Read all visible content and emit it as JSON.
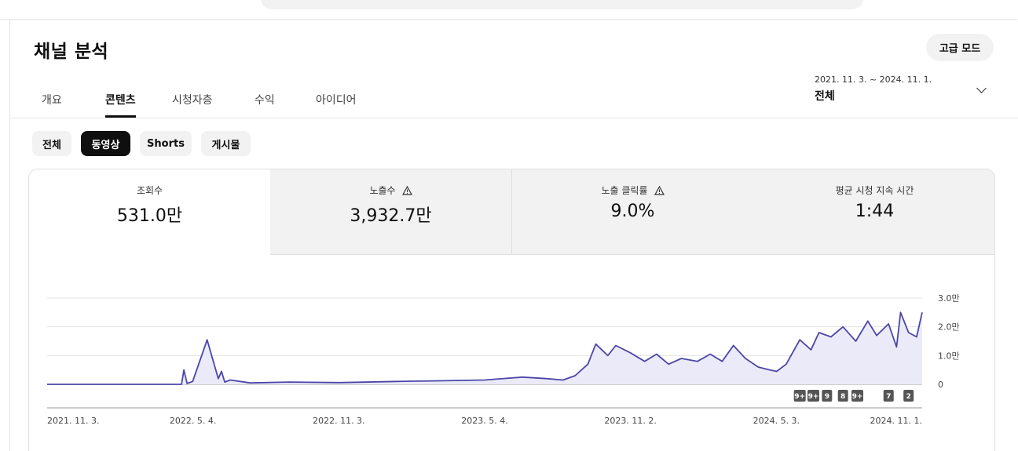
{
  "page": {
    "title": "채널 분석",
    "advanced_mode": "고급 모드"
  },
  "tabs": [
    {
      "label": "개요"
    },
    {
      "label": "콘텐츠"
    },
    {
      "label": "시청자층"
    },
    {
      "label": "수익"
    },
    {
      "label": "아이디어"
    }
  ],
  "active_tab": "콘텐츠",
  "date_range": {
    "range": "2021. 11. 3. ~ 2024. 11. 1.",
    "label": "전체"
  },
  "chips": [
    {
      "label": "전체"
    },
    {
      "label": "동영상"
    },
    {
      "label": "Shorts"
    },
    {
      "label": "게시물"
    }
  ],
  "active_chip": "동영상",
  "metrics": [
    {
      "label": "조회수",
      "value": "531.0만",
      "warning": false
    },
    {
      "label": "노출수",
      "value": "3,932.7만",
      "warning": true
    },
    {
      "label": "노출 클릭률",
      "value": "9.0%",
      "warning": true
    },
    {
      "label": "평균 시청 지속 시간",
      "value": "1:44",
      "warning": false
    }
  ],
  "colors": {
    "line": "#4c46a8",
    "area": "#ebeaf9",
    "badge": "#555555"
  },
  "chart_data": {
    "type": "area",
    "x_start": "2021-11-03",
    "x_end": "2024-11-01",
    "x_tick_labels": [
      "2021. 11. 3.",
      "2022. 5. 4.",
      "2022. 11. 3.",
      "2023. 5. 4.",
      "2023. 11. 2.",
      "2024. 5. 3.",
      "2024. 11. 1."
    ],
    "y_tick_labels": [
      "0",
      "1.0만",
      "2.0만",
      "3.0만"
    ],
    "ylim": [
      0,
      30000
    ],
    "grid": true,
    "y_axis_side": "right",
    "x": [
      "2021-11-03",
      "2022-04-20",
      "2022-04-23",
      "2022-04-27",
      "2022-05-04",
      "2022-05-22",
      "2022-06-05",
      "2022-06-09",
      "2022-06-13",
      "2022-06-20",
      "2022-07-15",
      "2022-09-01",
      "2022-11-03",
      "2023-01-15",
      "2023-03-01",
      "2023-05-04",
      "2023-06-20",
      "2023-07-20",
      "2023-08-10",
      "2023-08-25",
      "2023-09-10",
      "2023-09-20",
      "2023-10-05",
      "2023-10-15",
      "2023-11-02",
      "2023-11-20",
      "2023-12-05",
      "2023-12-20",
      "2024-01-05",
      "2024-01-25",
      "2024-02-10",
      "2024-02-25",
      "2024-03-10",
      "2024-03-25",
      "2024-04-10",
      "2024-04-25",
      "2024-05-03",
      "2024-05-15",
      "2024-06-01",
      "2024-06-15",
      "2024-06-25",
      "2024-07-10",
      "2024-07-25",
      "2024-08-10",
      "2024-08-25",
      "2024-09-05",
      "2024-09-20",
      "2024-09-30",
      "2024-10-05",
      "2024-10-15",
      "2024-10-25",
      "2024-11-01"
    ],
    "series": [
      {
        "values": [
          0,
          0,
          5000,
          300,
          1000,
          15500,
          2000,
          4500,
          800,
          1500,
          500,
          800,
          600,
          1000,
          1200,
          1500,
          2500,
          2000,
          1500,
          3000,
          7000,
          14000,
          10000,
          13500,
          11000,
          8000,
          10500,
          7000,
          9000,
          8000,
          10500,
          8000,
          13500,
          9000,
          6000,
          5000,
          4500,
          7000,
          15500,
          12000,
          18000,
          16500,
          20000,
          15000,
          22000,
          17000,
          21000,
          13000,
          25000,
          18000,
          16500,
          25000
        ]
      }
    ],
    "annotation_badges": [
      "9+",
      "9+",
      "9",
      "8",
      "9+",
      "7",
      "2"
    ],
    "annotation_badge_dates": [
      "2024-06-01",
      "2024-06-18",
      "2024-07-05",
      "2024-07-25",
      "2024-08-12",
      "2024-09-20",
      "2024-10-15"
    ]
  }
}
